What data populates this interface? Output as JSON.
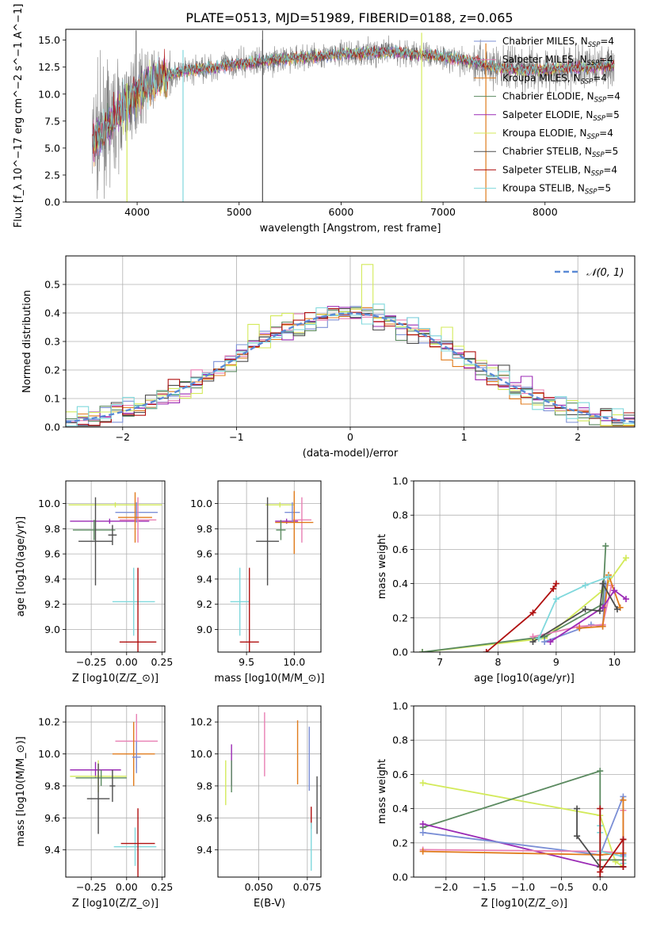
{
  "figure_title": "PLATE=0513, MJD=51989, FIBERID=0188, z=0.065",
  "palette": {
    "Chabrier MILES": "#7b8fd6",
    "Salpeter MILES": "#e87fb3",
    "Kroupa MILES": "#e07b1c",
    "Chabrier ELODIE": "#5b8a60",
    "Salpeter ELODIE": "#9b2bb5",
    "Kroupa ELODIE": "#d3ea5a",
    "Chabrier STELIB": "#4d4d4d",
    "Salpeter STELIB": "#b01010",
    "Kroupa STELIB": "#7fd8dc"
  },
  "legend_spectrum": [
    "Chabrier MILES, N_SSP=4",
    "Salpeter MILES, N_SSP=4",
    "Kroupa MILES, N_SSP=4",
    "Chabrier ELODIE, N_SSP=4",
    "Salpeter ELODIE, N_SSP=5",
    "Kroupa ELODIE, N_SSP=4",
    "Chabrier STELIB, N_SSP=5",
    "Salpeter STELIB, N_SSP=4",
    "Kroupa STELIB, N_SSP=5"
  ],
  "legend_hist": "𝒩(0, 1)",
  "chart_data": [
    {
      "id": "spectrum",
      "type": "line",
      "xlabel": "wavelength [Angstrom, rest frame]",
      "ylabel": "Flux [f_λ 10^−17 erg cm^−2 s^−1 A^−1]",
      "xlim": [
        3300,
        8880
      ],
      "ylim": [
        0,
        16
      ],
      "xticks": [
        4000,
        5000,
        6000,
        7000,
        8000
      ],
      "yticks": [
        0.0,
        2.5,
        5.0,
        7.5,
        10.0,
        12.5,
        15.0
      ],
      "continuum": [
        [
          3560,
          5.5
        ],
        [
          3750,
          7.5
        ],
        [
          3900,
          9.0
        ],
        [
          4000,
          10.3
        ],
        [
          4200,
          11.5
        ],
        [
          4500,
          12.2
        ],
        [
          5000,
          12.8
        ],
        [
          5500,
          13.3
        ],
        [
          6000,
          13.7
        ],
        [
          6500,
          13.9
        ],
        [
          6900,
          13.6
        ],
        [
          7300,
          13.0
        ],
        [
          7500,
          12.5
        ],
        [
          7800,
          12.2
        ],
        [
          8000,
          12.3
        ],
        [
          8500,
          12.5
        ],
        [
          8680,
          12.7
        ]
      ],
      "data_range": [
        3560,
        8680
      ],
      "dropouts": [
        [
          3900,
          0
        ],
        [
          4450,
          0
        ],
        [
          5230,
          0
        ],
        [
          6790,
          0
        ],
        [
          7420,
          0
        ]
      ]
    },
    {
      "id": "residual_hist",
      "type": "histogram",
      "xlabel": "(data-model)/error",
      "ylabel": "Normed distribution",
      "xlim": [
        -2.5,
        2.5
      ],
      "ylim": [
        0,
        0.6
      ],
      "xticks": [
        -2,
        -1,
        0,
        1,
        2
      ],
      "yticks": [
        0.0,
        0.1,
        0.2,
        0.3,
        0.4,
        0.5
      ],
      "bin_width": 0.1,
      "reference": "N(0,1) gaussian",
      "spike_bins": {
        "0.1": 0.57,
        "-0.9": 0.36,
        "-0.7": 0.39,
        "0.8": 0.35
      }
    },
    {
      "id": "age_vs_Z",
      "type": "errorbar",
      "xlabel": "Z [log10(Z/Z_⊙)]",
      "ylabel": "age [log10(age/yr)]",
      "xlim": [
        -0.43,
        0.27
      ],
      "ylim": [
        8.82,
        10.18
      ],
      "xticks": [
        -0.25,
        0.0,
        0.25
      ],
      "yticks": [
        9.0,
        9.2,
        9.4,
        9.6,
        9.8,
        10.0
      ],
      "points": [
        {
          "model": "Kroupa ELODIE",
          "x": -0.08,
          "xerr": 0.33,
          "y": 9.99,
          "yerr": 0.02
        },
        {
          "model": "Salpeter ELODIE",
          "x": -0.12,
          "xerr": 0.28,
          "y": 9.86,
          "yerr": 0.02
        },
        {
          "model": "Chabrier MILES",
          "x": 0.07,
          "xerr": 0.15,
          "y": 9.93,
          "yerr": 0.08
        },
        {
          "model": "Salpeter MILES",
          "x": 0.08,
          "xerr": 0.13,
          "y": 9.87,
          "yerr": 0.18
        },
        {
          "model": "Kroupa MILES",
          "x": 0.06,
          "xerr": 0.12,
          "y": 9.89,
          "yerr": 0.2
        },
        {
          "model": "Chabrier ELODIE",
          "x": -0.23,
          "xerr": 0.15,
          "y": 9.79,
          "yerr": 0.08
        },
        {
          "model": "Chabrier STELIB",
          "x": -0.22,
          "xerr": 0.12,
          "y": 9.7,
          "yerr": 0.35
        },
        {
          "model": "Chabrier STELIB",
          "x": -0.1,
          "xerr": 0.03,
          "y": 9.75,
          "yerr": 0.08
        },
        {
          "model": "Kroupa STELIB",
          "x": 0.05,
          "xerr": 0.15,
          "y": 9.22,
          "yerr": 0.27
        },
        {
          "model": "Salpeter STELIB",
          "x": 0.08,
          "xerr": 0.13,
          "y": 8.9,
          "yerr": 0.59
        }
      ]
    },
    {
      "id": "age_vs_mass",
      "type": "errorbar",
      "xlabel": "mass [log10(M/M_⊙)]",
      "ylabel": "",
      "xlim": [
        9.2,
        10.28
      ],
      "ylim": [
        8.82,
        10.18
      ],
      "xticks": [
        9.5,
        10.0
      ],
      "yticks": [
        9.0,
        9.2,
        9.4,
        9.6,
        9.8,
        10.0
      ],
      "points": [
        {
          "model": "Kroupa ELODIE",
          "x": 9.85,
          "xerr": 0.15,
          "y": 9.99,
          "yerr": 0.02
        },
        {
          "model": "Salpeter ELODIE",
          "x": 9.92,
          "xerr": 0.12,
          "y": 9.86,
          "yerr": 0.02
        },
        {
          "model": "Chabrier MILES",
          "x": 9.98,
          "xerr": 0.08,
          "y": 9.93,
          "yerr": 0.08
        },
        {
          "model": "Salpeter MILES",
          "x": 10.08,
          "xerr": 0.1,
          "y": 9.87,
          "yerr": 0.18
        },
        {
          "model": "Kroupa MILES",
          "x": 10.0,
          "xerr": 0.2,
          "y": 9.85,
          "yerr": 0.25
        },
        {
          "model": "Chabrier ELODIE",
          "x": 9.86,
          "xerr": 0.05,
          "y": 9.79,
          "yerr": 0.08
        },
        {
          "model": "Chabrier STELIB",
          "x": 9.72,
          "xerr": 0.12,
          "y": 9.7,
          "yerr": 0.35
        },
        {
          "model": "Kroupa STELIB",
          "x": 9.43,
          "xerr": 0.1,
          "y": 9.22,
          "yerr": 0.27
        },
        {
          "model": "Salpeter STELIB",
          "x": 9.53,
          "xerr": 0.1,
          "y": 8.9,
          "yerr": 0.59
        }
      ]
    },
    {
      "id": "mass_weight_vs_age",
      "type": "line",
      "xlabel": "age [log10(age/yr)]",
      "ylabel": "mass weight",
      "xlim": [
        6.55,
        10.35
      ],
      "ylim": [
        0,
        1
      ],
      "xticks": [
        7,
        8,
        9,
        10
      ],
      "yticks": [
        0.0,
        0.2,
        0.4,
        0.6,
        0.8,
        1.0
      ],
      "series": [
        {
          "model": "Kroupa ELODIE",
          "points": [
            [
              6.7,
              0.0
            ],
            [
              8.8,
              0.08
            ],
            [
              9.8,
              0.36
            ],
            [
              10.2,
              0.55
            ]
          ]
        },
        {
          "model": "Chabrier ELODIE",
          "points": [
            [
              6.7,
              0.0
            ],
            [
              8.8,
              0.09
            ],
            [
              9.8,
              0.28
            ],
            [
              9.85,
              0.62
            ]
          ]
        },
        {
          "model": "Chabrier MILES",
          "points": [
            [
              8.8,
              0.06
            ],
            [
              9.6,
              0.16
            ],
            [
              9.8,
              0.15
            ],
            [
              9.85,
              0.4
            ]
          ]
        },
        {
          "model": "Salpeter MILES",
          "points": [
            [
              8.6,
              0.09
            ],
            [
              9.4,
              0.15
            ],
            [
              9.8,
              0.16
            ],
            [
              9.95,
              0.39
            ]
          ]
        },
        {
          "model": "Kroupa MILES",
          "points": [
            [
              9.4,
              0.14
            ],
            [
              9.8,
              0.15
            ],
            [
              9.9,
              0.45
            ],
            [
              10.1,
              0.26
            ]
          ]
        },
        {
          "model": "Salpeter ELODIE",
          "points": [
            [
              8.9,
              0.06
            ],
            [
              9.8,
              0.26
            ],
            [
              10.0,
              0.36
            ],
            [
              10.2,
              0.31
            ]
          ]
        },
        {
          "model": "Chabrier STELIB",
          "points": [
            [
              8.6,
              0.06
            ],
            [
              9.5,
              0.25
            ],
            [
              9.75,
              0.24
            ],
            [
              9.8,
              0.4
            ],
            [
              10.05,
              0.25
            ]
          ]
        },
        {
          "model": "Kroupa STELIB",
          "points": [
            [
              8.7,
              0.08
            ],
            [
              9.0,
              0.31
            ],
            [
              9.5,
              0.39
            ],
            [
              9.9,
              0.44
            ]
          ]
        },
        {
          "model": "Salpeter STELIB",
          "points": [
            [
              7.8,
              0.0
            ],
            [
              8.6,
              0.23
            ],
            [
              8.95,
              0.37
            ],
            [
              9.0,
              0.4
            ]
          ]
        }
      ]
    },
    {
      "id": "mass_vs_Z",
      "type": "errorbar",
      "xlabel": "Z [log10(Z/Z_⊙)]",
      "ylabel": "mass [log10(M/M_⊙)]",
      "xlim": [
        -0.43,
        0.27
      ],
      "ylim": [
        9.23,
        10.3
      ],
      "xticks": [
        -0.25,
        0.0,
        0.25
      ],
      "yticks": [
        9.4,
        9.6,
        9.8,
        10.0,
        10.2
      ],
      "points": [
        {
          "model": "Salpeter MILES",
          "x": 0.07,
          "xerr": 0.15,
          "y": 10.08,
          "yerr": 0.17
        },
        {
          "model": "Kroupa MILES",
          "x": 0.05,
          "xerr": 0.15,
          "y": 10.0,
          "yerr": 0.2
        },
        {
          "model": "Chabrier MILES",
          "x": 0.07,
          "xerr": 0.03,
          "y": 9.98,
          "yerr": 0.1
        },
        {
          "model": "Salpeter ELODIE",
          "x": -0.22,
          "xerr": 0.18,
          "y": 9.9,
          "yerr": 0.05
        },
        {
          "model": "Kroupa ELODIE",
          "x": -0.2,
          "xerr": 0.2,
          "y": 9.86,
          "yerr": 0.1
        },
        {
          "model": "Chabrier ELODIE",
          "x": -0.18,
          "xerr": 0.18,
          "y": 9.85,
          "yerr": 0.05
        },
        {
          "model": "Chabrier STELIB",
          "x": -0.2,
          "xerr": 0.08,
          "y": 9.72,
          "yerr": 0.22
        },
        {
          "model": "Chabrier STELIB",
          "x": -0.1,
          "xerr": 0.02,
          "y": 9.8,
          "yerr": 0.1
        },
        {
          "model": "Kroupa STELIB",
          "x": 0.06,
          "xerr": 0.15,
          "y": 9.42,
          "yerr": 0.12
        },
        {
          "model": "Salpeter STELIB",
          "x": 0.08,
          "xerr": 0.12,
          "y": 9.44,
          "yerr": 0.22
        }
      ]
    },
    {
      "id": "mass_vs_EBV",
      "type": "errorbar",
      "xlabel": "E(B-V)",
      "ylabel": "",
      "xlim": [
        0.029,
        0.082
      ],
      "ylim": [
        9.23,
        10.3
      ],
      "xticks": [
        0.05,
        0.075
      ],
      "yticks": [
        9.4,
        9.6,
        9.8,
        10.0,
        10.2
      ],
      "points": [
        {
          "model": "Kroupa ELODIE",
          "x": 0.033,
          "xerr": 0,
          "y": 9.82,
          "yerr": 0.14
        },
        {
          "model": "Salpeter ELODIE",
          "x": 0.036,
          "xerr": 0,
          "y": 9.93,
          "yerr": 0.13
        },
        {
          "model": "Chabrier ELODIE",
          "x": 0.036,
          "xerr": 0,
          "y": 9.86,
          "yerr": 0.1
        },
        {
          "model": "Salpeter MILES",
          "x": 0.053,
          "xerr": 0,
          "y": 10.06,
          "yerr": 0.2
        },
        {
          "model": "Kroupa MILES",
          "x": 0.07,
          "xerr": 0,
          "y": 10.01,
          "yerr": 0.2
        },
        {
          "model": "Chabrier MILES",
          "x": 0.076,
          "xerr": 0,
          "y": 9.97,
          "yerr": 0.2
        },
        {
          "model": "Salpeter STELIB",
          "x": 0.077,
          "xerr": 0,
          "y": 9.6,
          "yerr": 0.07
        },
        {
          "model": "Kroupa STELIB",
          "x": 0.077,
          "xerr": 0,
          "y": 9.42,
          "yerr": 0.15
        },
        {
          "model": "Chabrier STELIB",
          "x": 0.08,
          "xerr": 0,
          "y": 9.68,
          "yerr": 0.18
        }
      ]
    },
    {
      "id": "mass_weight_vs_Z",
      "type": "line",
      "xlabel": "Z [log10(Z/Z_⊙)]",
      "ylabel": "mass weight",
      "xlim": [
        -2.42,
        0.45
      ],
      "ylim": [
        0,
        1
      ],
      "xticks": [
        -2.0,
        -1.5,
        -1.0,
        -0.5,
        0.0
      ],
      "yticks": [
        0.0,
        0.2,
        0.4,
        0.6,
        0.8,
        1.0
      ],
      "series": [
        {
          "model": "Kroupa ELODIE",
          "points": [
            [
              -2.3,
              0.55
            ],
            [
              0.0,
              0.36
            ],
            [
              0.2,
              0.09
            ],
            [
              0.3,
              0.06
            ]
          ]
        },
        {
          "model": "Chabrier ELODIE",
          "points": [
            [
              -2.3,
              0.29
            ],
            [
              0.0,
              0.62
            ],
            [
              0.0,
              0.1
            ],
            [
              0.3,
              0.1
            ]
          ]
        },
        {
          "model": "Salpeter ELODIE",
          "points": [
            [
              -2.3,
              0.31
            ],
            [
              0.0,
              0.06
            ],
            [
              0.3,
              0.06
            ]
          ]
        },
        {
          "model": "Chabrier MILES",
          "points": [
            [
              -2.3,
              0.26
            ],
            [
              0.0,
              0.13
            ],
            [
              0.3,
              0.47
            ],
            [
              0.3,
              0.13
            ]
          ]
        },
        {
          "model": "Salpeter MILES",
          "points": [
            [
              -2.3,
              0.16
            ],
            [
              0.0,
              0.15
            ],
            [
              0.3,
              0.14
            ],
            [
              0.3,
              0.39
            ]
          ]
        },
        {
          "model": "Kroupa MILES",
          "points": [
            [
              -2.3,
              0.15
            ],
            [
              0.0,
              0.13
            ],
            [
              0.3,
              0.14
            ],
            [
              0.3,
              0.45
            ]
          ]
        },
        {
          "model": "Chabrier STELIB",
          "points": [
            [
              -0.3,
              0.4
            ],
            [
              -0.3,
              0.24
            ],
            [
              0.0,
              0.06
            ],
            [
              0.3,
              0.06
            ],
            [
              0.3,
              0.22
            ]
          ]
        },
        {
          "model": "Kroupa STELIB",
          "points": [
            [
              0.0,
              0.3
            ],
            [
              0.0,
              0.26
            ],
            [
              0.0,
              0.15
            ],
            [
              0.3,
              0.12
            ],
            [
              0.3,
              0.08
            ]
          ]
        },
        {
          "model": "Salpeter STELIB",
          "points": [
            [
              0.0,
              0.0
            ],
            [
              0.0,
              0.4
            ],
            [
              0.0,
              0.03
            ],
            [
              0.3,
              0.22
            ],
            [
              0.3,
              0.06
            ]
          ]
        }
      ]
    }
  ]
}
